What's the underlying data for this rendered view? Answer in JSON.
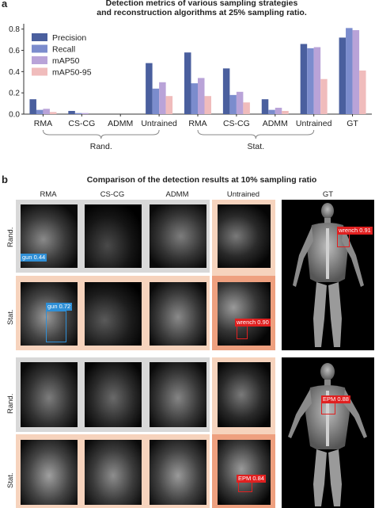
{
  "panel_a": {
    "letter": "a",
    "title_line1": "Detection metrics of various sampling strategies",
    "title_line2": "and reconstruction algorithms at 25% sampling ratio."
  },
  "panel_b": {
    "letter": "b",
    "title": "Comparison of the detection results at 10% sampling ratio",
    "columns": [
      "RMA",
      "CS-CG",
      "ADMM",
      "Untrained",
      "GT"
    ],
    "rows": [
      "Rand.",
      "Stat.",
      "Rand.",
      "Stat."
    ],
    "detections": {
      "rand_rma": "gun 0.44",
      "stat_rma": "gun 0.72",
      "stat_untrained_top": "wrench 0.90",
      "gt_top": "wrench 0.91",
      "gt_bottom": "EPM 0.88",
      "stat_untrained_bottom": "EPM 0.84"
    },
    "colors": {
      "rand_bg": "#d8d8d8",
      "stat_bg": "#f6d3bd",
      "untrained_bg": "#eea07f",
      "gun_box": "#2f8fd6",
      "wrench_box": "#e02020"
    }
  },
  "chart_data": {
    "type": "bar",
    "title": "Detection metrics of various sampling strategies and reconstruction algorithms at 25% sampling ratio.",
    "categories": [
      "RMA",
      "CS-CG",
      "ADMM",
      "Untrained",
      "RMA",
      "CS-CG",
      "ADMM",
      "Untrained",
      "GT"
    ],
    "groups": [
      {
        "label": "Rand.",
        "categories": [
          0,
          1,
          2,
          3
        ]
      },
      {
        "label": "Stat.",
        "categories": [
          4,
          5,
          6,
          7
        ]
      }
    ],
    "series": [
      {
        "name": "Precision",
        "color": "#4a5f9e",
        "values": [
          0.14,
          0.03,
          0.0,
          0.48,
          0.58,
          0.43,
          0.14,
          0.66,
          0.72
        ]
      },
      {
        "name": "Recall",
        "color": "#7b8ccd",
        "values": [
          0.04,
          0.01,
          0.0,
          0.24,
          0.29,
          0.18,
          0.04,
          0.62,
          0.81
        ]
      },
      {
        "name": "mAP50",
        "color": "#b9a3d8",
        "values": [
          0.05,
          0.01,
          0.0,
          0.3,
          0.34,
          0.21,
          0.06,
          0.63,
          0.79
        ]
      },
      {
        "name": "mAP50-95",
        "color": "#f0bcbc",
        "values": [
          0.02,
          0.0,
          0.0,
          0.17,
          0.17,
          0.11,
          0.03,
          0.33,
          0.41
        ]
      }
    ],
    "ylim": [
      0,
      0.85
    ],
    "yticks": [
      0.0,
      0.2,
      0.4,
      0.6,
      0.8
    ],
    "xlabel": "",
    "ylabel": "",
    "legend_position": "top-left",
    "grid": false
  }
}
